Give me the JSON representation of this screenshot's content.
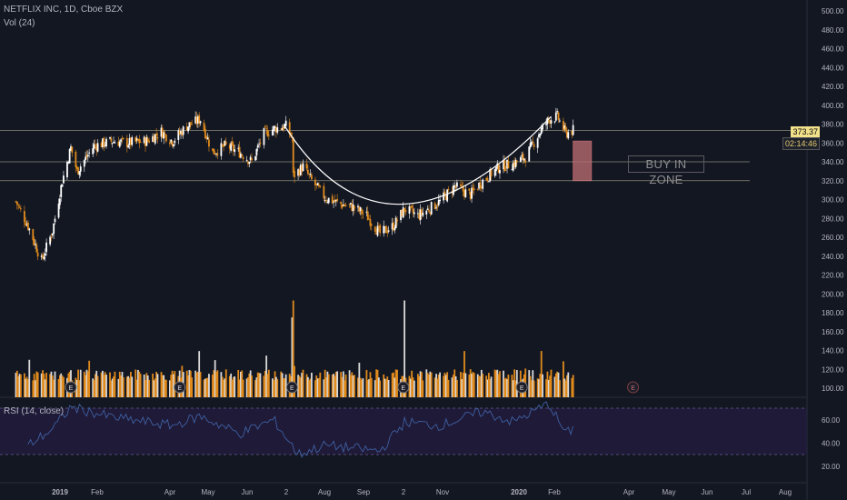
{
  "header": {
    "symbol_line": "NETFLIX INC, 1D, Cboe BZX",
    "volume_label": "Vol (24)",
    "rsi_label": "RSI (14, close)"
  },
  "price_tags": {
    "last_price": "373.37",
    "countdown": "02:14:46"
  },
  "annotation": {
    "zone_label": "BUY IN ZONE"
  },
  "earnings_marker": "E",
  "colors": {
    "background": "#131722",
    "up_candle": "#ffffff",
    "down_candle": "#e08a1c",
    "volume_up": "#d9d9d9",
    "volume_down": "#e08a1c",
    "rsi_line": "#3e5fa0",
    "rsi_band": "#2a1e4a",
    "level_line": "#8a8a7a",
    "zone_fill": "#b56a6f",
    "last_price_tag": "#f3e28c"
  },
  "chart_data": [
    {
      "type": "candlestick",
      "title": "NETFLIX INC, 1D, Cboe BZX",
      "price_axis": {
        "ticks": [
          "500.00",
          "480.00",
          "460.00",
          "440.00",
          "420.00",
          "400.00",
          "380.00",
          "360.00",
          "340.00",
          "320.00",
          "300.00",
          "280.00",
          "260.00",
          "240.00",
          "220.00",
          "200.00",
          "180.00",
          "160.00",
          "140.00",
          "120.00",
          "100.00"
        ]
      },
      "time_axis": {
        "ticks": [
          "2019",
          "Feb",
          "Apr",
          "May",
          "Jun",
          "2",
          "Aug",
          "Sep",
          "2",
          "Nov",
          "2020",
          "Feb",
          "Apr",
          "May",
          "Jun",
          "Jul",
          "Aug"
        ]
      },
      "close_path": [
        {
          "t": "2018-12-03",
          "close": 298
        },
        {
          "t": "2018-12-13",
          "close": 272
        },
        {
          "t": "2018-12-24",
          "close": 235
        },
        {
          "t": "2019-01-02",
          "close": 267
        },
        {
          "t": "2019-01-10",
          "close": 320
        },
        {
          "t": "2019-01-17",
          "close": 355
        },
        {
          "t": "2019-01-22",
          "close": 330
        },
        {
          "t": "2019-02-05",
          "close": 357
        },
        {
          "t": "2019-02-20",
          "close": 362
        },
        {
          "t": "2019-03-05",
          "close": 360
        },
        {
          "t": "2019-03-20",
          "close": 362
        },
        {
          "t": "2019-04-01",
          "close": 372
        },
        {
          "t": "2019-04-10",
          "close": 362
        },
        {
          "t": "2019-04-22",
          "close": 378
        },
        {
          "t": "2019-05-03",
          "close": 385
        },
        {
          "t": "2019-05-13",
          "close": 350
        },
        {
          "t": "2019-05-24",
          "close": 357
        },
        {
          "t": "2019-06-04",
          "close": 350
        },
        {
          "t": "2019-06-14",
          "close": 340
        },
        {
          "t": "2019-06-24",
          "close": 370
        },
        {
          "t": "2019-07-02",
          "close": 375
        },
        {
          "t": "2019-07-12",
          "close": 378
        },
        {
          "t": "2019-07-17",
          "close": 365
        },
        {
          "t": "2019-07-18",
          "close": 325
        },
        {
          "t": "2019-07-26",
          "close": 335
        },
        {
          "t": "2019-08-02",
          "close": 320
        },
        {
          "t": "2019-08-13",
          "close": 302
        },
        {
          "t": "2019-08-26",
          "close": 295
        },
        {
          "t": "2019-09-05",
          "close": 292
        },
        {
          "t": "2019-09-16",
          "close": 283
        },
        {
          "t": "2019-09-27",
          "close": 264
        },
        {
          "t": "2019-10-08",
          "close": 272
        },
        {
          "t": "2019-10-17",
          "close": 290
        },
        {
          "t": "2019-10-28",
          "close": 283
        },
        {
          "t": "2019-11-06",
          "close": 290
        },
        {
          "t": "2019-11-15",
          "close": 298
        },
        {
          "t": "2019-11-27",
          "close": 314
        },
        {
          "t": "2019-12-10",
          "close": 305
        },
        {
          "t": "2019-12-20",
          "close": 320
        },
        {
          "t": "2020-01-03",
          "close": 335
        },
        {
          "t": "2020-01-14",
          "close": 338
        },
        {
          "t": "2020-01-24",
          "close": 345
        },
        {
          "t": "2020-02-04",
          "close": 370
        },
        {
          "t": "2020-02-12",
          "close": 385
        },
        {
          "t": "2020-02-19",
          "close": 388
        },
        {
          "t": "2020-02-26",
          "close": 370
        },
        {
          "t": "2020-03-03",
          "close": 373.37
        }
      ],
      "horizontal_levels": [
        373.37,
        340,
        320
      ],
      "buy_zone": {
        "from": "2020-03-03",
        "to": "2020-03-18",
        "low": 320,
        "high": 362
      },
      "earnings_dates": [
        "2019-01-17",
        "2019-04-16",
        "2019-07-17",
        "2019-10-16",
        "2020-01-21",
        "2020-04-21"
      ]
    },
    {
      "type": "bar",
      "title": "Vol (24)",
      "note": "volume histogram, relative scale on price axis",
      "peaks": [
        {
          "t": "2019-07-18",
          "value": 193
        },
        {
          "t": "2019-10-17",
          "value": 193
        },
        {
          "t": "2019-07-17",
          "value": 175
        }
      ]
    },
    {
      "type": "line",
      "title": "RSI (14, close)",
      "axis": {
        "ticks": [
          "60.00",
          "40.00",
          "20.00"
        ]
      },
      "band": [
        30,
        70
      ],
      "values": [
        {
          "t": "2018-12-13",
          "rsi": 38
        },
        {
          "t": "2019-01-02",
          "rsi": 52
        },
        {
          "t": "2019-01-17",
          "rsi": 71
        },
        {
          "t": "2019-02-20",
          "rsi": 62
        },
        {
          "t": "2019-04-10",
          "rsi": 55
        },
        {
          "t": "2019-05-03",
          "rsi": 63
        },
        {
          "t": "2019-06-04",
          "rsi": 48
        },
        {
          "t": "2019-07-02",
          "rsi": 60
        },
        {
          "t": "2019-07-22",
          "rsi": 30
        },
        {
          "t": "2019-08-13",
          "rsi": 38
        },
        {
          "t": "2019-09-27",
          "rsi": 33
        },
        {
          "t": "2019-10-17",
          "rsi": 58
        },
        {
          "t": "2019-11-15",
          "rsi": 55
        },
        {
          "t": "2019-12-20",
          "rsi": 67
        },
        {
          "t": "2020-01-14",
          "rsi": 58
        },
        {
          "t": "2020-02-12",
          "rsi": 74
        },
        {
          "t": "2020-02-26",
          "rsi": 48
        },
        {
          "t": "2020-03-03",
          "rsi": 52
        }
      ]
    }
  ]
}
